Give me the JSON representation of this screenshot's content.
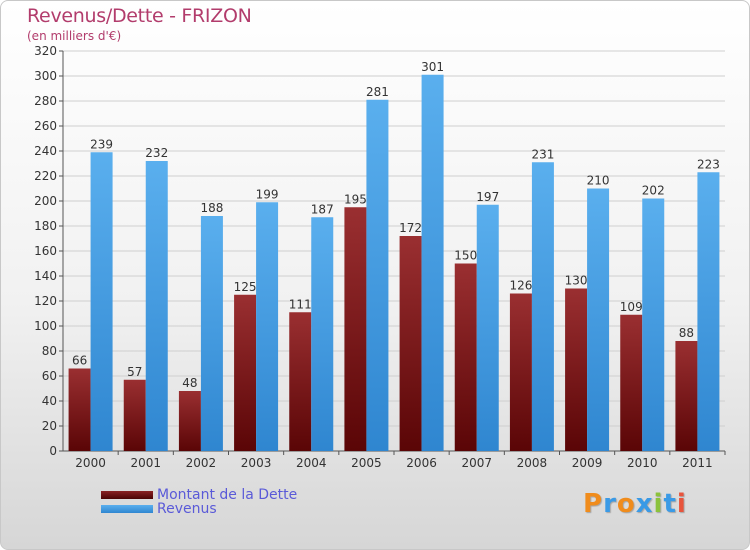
{
  "header": {
    "title": "Revenus/Dette - FRIZON",
    "subtitle": "(en milliers d'€)"
  },
  "legend": [
    {
      "label": "Montant de la Dette",
      "color": "#6e0f10"
    },
    {
      "label": "Revenus",
      "color": "#3a9ae6"
    }
  ],
  "logo": {
    "letters": [
      "P",
      "r",
      "o",
      "x",
      "i",
      "t",
      "i"
    ],
    "colors": [
      "#f08c1c",
      "#3a9ae6",
      "#f08c1c",
      "#3a9ae6",
      "#8cc23c",
      "#3a9ae6",
      "#e8543c"
    ]
  },
  "chart_data": {
    "type": "bar",
    "title": "Revenus/Dette - FRIZON",
    "ylabel": "(en milliers d'€)",
    "ylim": [
      0,
      320
    ],
    "ytick_step": 20,
    "grid": true,
    "categories": [
      "2000",
      "2001",
      "2002",
      "2003",
      "2004",
      "2005",
      "2006",
      "2007",
      "2008",
      "2009",
      "2010",
      "2011"
    ],
    "series": [
      {
        "name": "Montant de la Dette",
        "color": "#7a1416",
        "values": [
          66,
          57,
          48,
          125,
          111,
          195,
          172,
          150,
          126,
          130,
          109,
          88
        ]
      },
      {
        "name": "Revenus",
        "color": "#4ea6ea",
        "values": [
          239,
          232,
          188,
          199,
          187,
          281,
          301,
          197,
          231,
          210,
          202,
          223
        ]
      }
    ]
  }
}
